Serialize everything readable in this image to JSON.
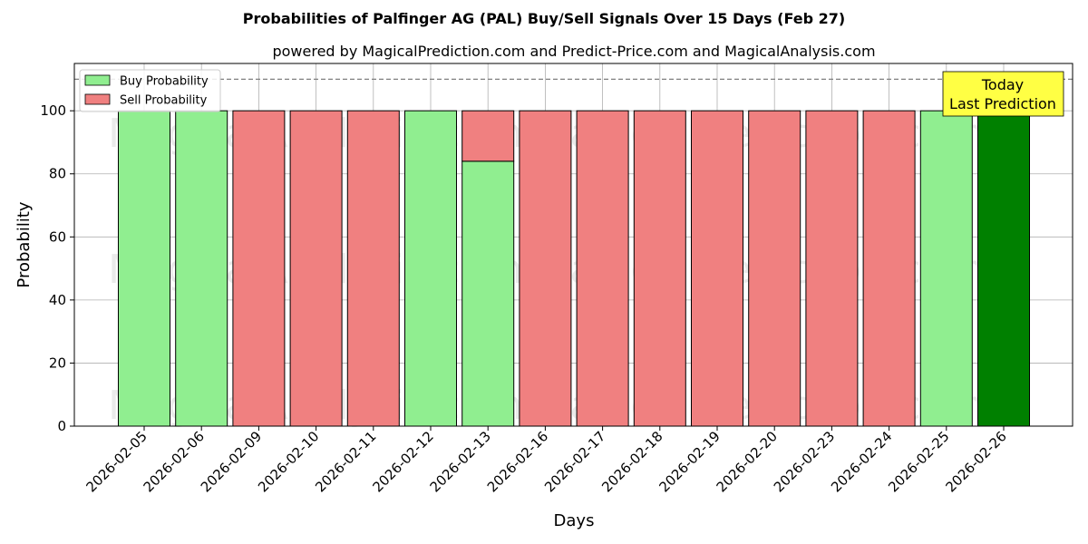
{
  "chart_data": {
    "type": "bar",
    "title": "Probabilities of Palfinger AG (PAL) Buy/Sell Signals Over 15 Days (Feb 27)",
    "subtitle": "powered by MagicalPrediction.com and Predict-Price.com and MagicalAnalysis.com",
    "xlabel": "Days",
    "ylabel": "Probability",
    "ylim": [
      0,
      115
    ],
    "yticks": [
      0,
      20,
      40,
      60,
      80,
      100
    ],
    "grid": true,
    "legend_placement": "upper-left",
    "reference_line": 110,
    "categories": [
      "2026-02-05",
      "2026-02-06",
      "2026-02-09",
      "2026-02-10",
      "2026-02-11",
      "2026-02-12",
      "2026-02-13",
      "2026-02-16",
      "2026-02-17",
      "2026-02-18",
      "2026-02-19",
      "2026-02-20",
      "2026-02-23",
      "2026-02-24",
      "2026-02-25",
      "2026-02-26"
    ],
    "series": [
      {
        "name": "Buy Probability",
        "color": "#90ee90",
        "values": [
          100,
          100,
          0,
          0,
          0,
          100,
          84,
          0,
          0,
          0,
          0,
          0,
          0,
          0,
          100,
          100
        ]
      },
      {
        "name": "Sell Probability",
        "color": "#f08080",
        "values": [
          0,
          0,
          100,
          100,
          100,
          0,
          16,
          100,
          100,
          100,
          100,
          100,
          100,
          100,
          0,
          0
        ]
      }
    ],
    "highlight": {
      "index": 15,
      "color": "#008000"
    },
    "annotation": {
      "lines": [
        "Today",
        "Last Prediction"
      ],
      "background": "#ffff44"
    },
    "watermarks": [
      "MagicalAnalysis.com",
      "MagicalPrediction.com"
    ]
  }
}
